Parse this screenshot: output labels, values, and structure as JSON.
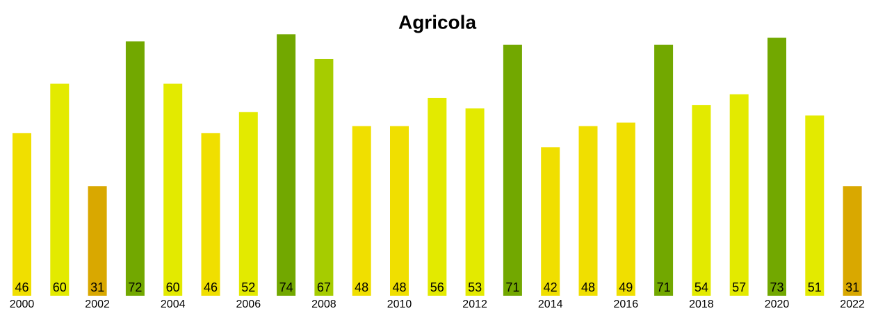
{
  "chart_data": {
    "type": "bar",
    "title": "Agricola",
    "categories": [
      "2000",
      null,
      "2002",
      null,
      "2004",
      null,
      "2006",
      null,
      "2008",
      null,
      "2010",
      null,
      "2012",
      null,
      "2014",
      null,
      "2016",
      null,
      "2018",
      null,
      "2020",
      null,
      "2022"
    ],
    "values": [
      46,
      60,
      31,
      72,
      60,
      46,
      52,
      74,
      67,
      48,
      48,
      56,
      53,
      71,
      42,
      48,
      49,
      71,
      54,
      57,
      73,
      51,
      31
    ],
    "colors": [
      "#f0df00",
      "#e3ea00",
      "#d9a800",
      "#72a800",
      "#e3ea00",
      "#f0df00",
      "#e3ea00",
      "#72a800",
      "#a6cc00",
      "#f0df00",
      "#f0df00",
      "#e3ea00",
      "#e3ea00",
      "#72a800",
      "#f0df00",
      "#f0df00",
      "#f0df00",
      "#72a800",
      "#e3ea00",
      "#e3ea00",
      "#72a800",
      "#e3ea00",
      "#d9a800"
    ]
  }
}
